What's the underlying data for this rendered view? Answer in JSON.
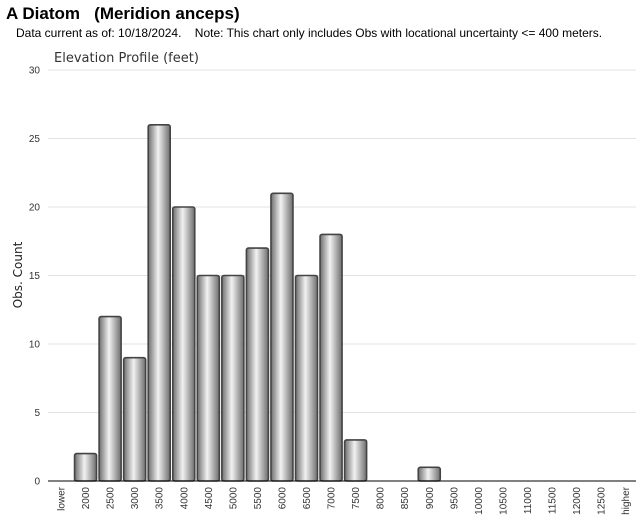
{
  "header": {
    "title": "A Diatom   (Meridion anceps)",
    "subtitle": "Data current as of: 10/18/2024.    Note: This chart only includes Obs with locational uncertainty <= 400 meters."
  },
  "chart_data": {
    "type": "bar",
    "title": "Elevation Profile (feet)",
    "xlabel": "",
    "ylabel": "Obs. Count",
    "ylim": [
      0,
      30
    ],
    "yticks": [
      0,
      5,
      10,
      15,
      20,
      25,
      30
    ],
    "grid": true,
    "categories": [
      "lower",
      "2000",
      "2500",
      "3000",
      "3500",
      "4000",
      "4500",
      "5000",
      "5500",
      "6000",
      "6500",
      "7000",
      "7500",
      "8000",
      "8500",
      "9000",
      "9500",
      "10000",
      "10500",
      "11000",
      "11500",
      "12000",
      "12500",
      "higher"
    ],
    "values": [
      0,
      2,
      12,
      9,
      26,
      20,
      15,
      15,
      17,
      21,
      15,
      18,
      3,
      0,
      0,
      1,
      0,
      0,
      0,
      0,
      0,
      0,
      0,
      0
    ],
    "colors": {
      "bar_dark": "#6e6e6e",
      "bar_light": "#f2f2f2",
      "bar_stroke": "#444444",
      "grid": "#e3e3e3",
      "axis": "#000000"
    }
  }
}
